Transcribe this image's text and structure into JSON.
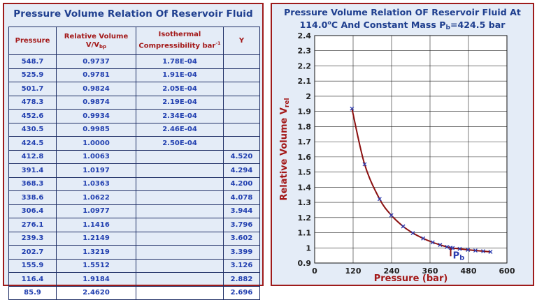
{
  "table": {
    "title": "Pressure Volume Relation Of Reservoir Fluid",
    "headers": {
      "pressure": "Pressure",
      "relvol_line1": "Relative Volume",
      "relvol_line2_main": "V/V",
      "relvol_line2_sub": "bp",
      "iso_line1": "Isothermal",
      "iso_line2_main": "Compressibility bar",
      "iso_line2_sup": "-1",
      "y": "Y"
    },
    "rows": [
      {
        "p": "548.7",
        "rv": "0.9737",
        "c": "1.78E-04",
        "y": ""
      },
      {
        "p": "525.9",
        "rv": "0.9781",
        "c": "1.91E-04",
        "y": ""
      },
      {
        "p": "501.7",
        "rv": "0.9824",
        "c": "2.05E-04",
        "y": ""
      },
      {
        "p": "478.3",
        "rv": "0.9874",
        "c": "2.19E-04",
        "y": ""
      },
      {
        "p": "452.6",
        "rv": "0.9934",
        "c": "2.34E-04",
        "y": ""
      },
      {
        "p": "430.5",
        "rv": "0.9985",
        "c": "2.46E-04",
        "y": ""
      },
      {
        "p": "424.5",
        "rv": "1.0000",
        "c": "2.50E-04",
        "y": ""
      },
      {
        "p": "412.8",
        "rv": "1.0063",
        "c": "",
        "y": "4.520"
      },
      {
        "p": "391.4",
        "rv": "1.0197",
        "c": "",
        "y": "4.294"
      },
      {
        "p": "368.3",
        "rv": "1.0363",
        "c": "",
        "y": "4.200"
      },
      {
        "p": "338.6",
        "rv": "1.0622",
        "c": "",
        "y": "4.078"
      },
      {
        "p": "306.4",
        "rv": "1.0977",
        "c": "",
        "y": "3.944"
      },
      {
        "p": "276.1",
        "rv": "1.1416",
        "c": "",
        "y": "3.796"
      },
      {
        "p": "239.3",
        "rv": "1.2149",
        "c": "",
        "y": "3.602"
      },
      {
        "p": "202.7",
        "rv": "1.3219",
        "c": "",
        "y": "3.399"
      },
      {
        "p": "155.9",
        "rv": "1.5512",
        "c": "",
        "y": "3.126"
      },
      {
        "p": "116.4",
        "rv": "1.9184",
        "c": "",
        "y": "2.882"
      },
      {
        "p": "85.9",
        "rv": "2.4620",
        "c": "",
        "y": "2.696"
      }
    ]
  },
  "chart_title": {
    "line1": "Pressure Volume Relation OF Reservoir Fluid  At",
    "line2_a": "114.0",
    "line2_deg": "o",
    "line2_b": "C And Constant Mass P",
    "line2_sub": "b",
    "line2_c": "=424.5 bar"
  },
  "chart_data": {
    "type": "line",
    "title": "Pressure Volume Relation OF Reservoir Fluid At 114.0°C And Constant Mass Pb=424.5 bar",
    "xlabel": "Pressure (bar)",
    "ylabel_main": "Relative Volume V",
    "ylabel_sub": "rel",
    "xlim": [
      0,
      600
    ],
    "ylim": [
      0.9,
      2.4
    ],
    "xticks": [
      0,
      120,
      240,
      360,
      480,
      600
    ],
    "yticks": [
      0.9,
      1.0,
      1.1,
      1.2,
      1.3,
      1.4,
      1.5,
      1.6,
      1.7,
      1.8,
      1.9,
      2.0,
      2.1,
      2.2,
      2.3,
      2.4
    ],
    "ytick_labels": [
      "0.9",
      "1",
      "1.1",
      "1.2",
      "1.3",
      "1.4",
      "1.5",
      "1.6",
      "1.7",
      "1.8",
      "1.9",
      "2",
      "2.1",
      "2.2",
      "2.3",
      "2.4"
    ],
    "grid": true,
    "series": [
      {
        "name": "Relative Volume",
        "x": [
          548.7,
          525.9,
          501.7,
          478.3,
          452.6,
          430.5,
          424.5,
          412.8,
          391.4,
          368.3,
          338.6,
          306.4,
          276.1,
          239.3,
          202.7,
          155.9,
          116.4
        ],
        "y": [
          0.9737,
          0.9781,
          0.9824,
          0.9874,
          0.9934,
          0.9985,
          1.0,
          1.0063,
          1.0197,
          1.0363,
          1.0622,
          1.0977,
          1.1416,
          1.2149,
          1.3219,
          1.5512,
          1.9184
        ]
      }
    ],
    "annotation": {
      "text_main": "P",
      "text_sub": "b",
      "x": 424.5,
      "y": 1.0
    },
    "colors": {
      "curve": "#8b1010",
      "marker": "#2a3bb0",
      "annotation": "#2a3bb0",
      "axis_label": "#a31818",
      "grid": "#222222"
    }
  }
}
